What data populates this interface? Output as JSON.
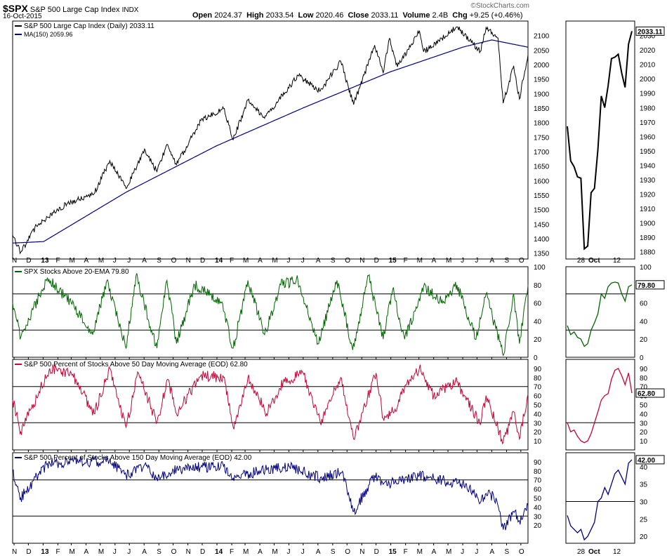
{
  "header": {
    "symbol": "$SPX",
    "name": "S&P 500 Large Cap Index",
    "exchange": "INDX",
    "date": "16-Oct-2015",
    "watermark": "©StockCharts.com",
    "open_label": "Open",
    "open": "2024.37",
    "high_label": "High",
    "high": "2033.54",
    "low_label": "Low",
    "low": "2020.46",
    "close_label": "Close",
    "close": "2033.11",
    "volume_label": "Volume",
    "volume": "2.4B",
    "chg_label": "Chg",
    "chg": "+9.25 (+0.46%)"
  },
  "x_axis": {
    "labels": [
      "N",
      "D",
      "13",
      "F",
      "M",
      "A",
      "M",
      "J",
      "J",
      "A",
      "S",
      "O",
      "N",
      "D",
      "14",
      "F",
      "M",
      "A",
      "M",
      "J",
      "J",
      "A",
      "S",
      "O",
      "N",
      "D",
      "15",
      "F",
      "M",
      "A",
      "M",
      "J",
      "J",
      "A",
      "S",
      "O"
    ],
    "bold": [
      "13",
      "14",
      "15"
    ],
    "side_labels": [
      "28",
      "Oct",
      "12"
    ]
  },
  "colors": {
    "price": "#000000",
    "ma": "#000080",
    "ema20": "#006400",
    "pct50": "#cc0033",
    "pct150": "#000080"
  },
  "chart_data": [
    {
      "type": "line",
      "panel": "price",
      "legend": [
        "S&P 500 Large Cap Index (Daily) 2033.11",
        "MA(150) 2059.96"
      ],
      "ylim": [
        1330,
        2150
      ],
      "yticks": [
        1350,
        1400,
        1450,
        1500,
        1550,
        1600,
        1650,
        1700,
        1750,
        1800,
        1850,
        1900,
        1950,
        2000,
        2050,
        2100
      ],
      "x_range": [
        "2012-10-29",
        "2015-10-16"
      ],
      "series": [
        {
          "name": "S&P 500 Large Cap Index",
          "x": [
            "2012-10-29",
            "2012-11-15",
            "2012-12-18",
            "2013-01-02",
            "2013-02-20",
            "2013-04-18",
            "2013-05-21",
            "2013-06-24",
            "2013-08-02",
            "2013-08-28",
            "2013-09-18",
            "2013-10-08",
            "2013-11-28",
            "2014-01-15",
            "2014-02-04",
            "2014-03-07",
            "2014-04-11",
            "2014-06-20",
            "2014-08-06",
            "2014-09-18",
            "2014-10-15",
            "2014-11-28",
            "2014-12-16",
            "2014-12-29",
            "2015-01-15",
            "2015-03-02",
            "2015-03-11",
            "2015-05-20",
            "2015-07-08",
            "2015-07-20",
            "2015-08-14",
            "2015-08-25",
            "2015-09-16",
            "2015-09-28",
            "2015-10-16"
          ],
          "values": [
            1412,
            1353,
            1445,
            1462,
            1520,
            1555,
            1669,
            1573,
            1709,
            1631,
            1725,
            1655,
            1807,
            1848,
            1741,
            1878,
            1815,
            1962,
            1909,
            2011,
            1862,
            2067,
            1972,
            2090,
            1992,
            2117,
            2044,
            2130,
            2046,
            2128,
            2092,
            1867,
            1996,
            1881,
            2033
          ]
        },
        {
          "name": "MA(150)",
          "x": [
            "2012-10-29",
            "2013-01-02",
            "2013-06-24",
            "2013-12-31",
            "2014-06-30",
            "2014-12-31",
            "2015-06-01",
            "2015-08-01",
            "2015-10-16"
          ],
          "values": [
            1385,
            1390,
            1560,
            1720,
            1850,
            1975,
            2060,
            2085,
            2060
          ]
        }
      ],
      "side": {
        "ylim": [
          1875,
          2040
        ],
        "yticks": [
          1880,
          1890,
          1900,
          1910,
          1920,
          1930,
          1940,
          1950,
          1960,
          1970,
          1980,
          1990,
          2000,
          2010,
          2020,
          2030
        ],
        "x": [
          "2015-09-21",
          "2015-09-22",
          "2015-09-23",
          "2015-09-24",
          "2015-09-25",
          "2015-09-28",
          "2015-09-29",
          "2015-09-30",
          "2015-10-01",
          "2015-10-02",
          "2015-10-05",
          "2015-10-06",
          "2015-10-07",
          "2015-10-08",
          "2015-10-09",
          "2015-10-12",
          "2015-10-13",
          "2015-10-14",
          "2015-10-15",
          "2015-10-16"
        ],
        "values": [
          1967,
          1943,
          1939,
          1932,
          1931,
          1882,
          1884,
          1921,
          1924,
          1951,
          1988,
          1980,
          1995,
          2014,
          2015,
          2017,
          2004,
          1994,
          2024,
          2033
        ],
        "last_label": "2033.11"
      }
    },
    {
      "type": "line",
      "panel": "ema20",
      "legend": [
        "SPX Stocks Above 20-EMA 79.80"
      ],
      "ylim": [
        0,
        100
      ],
      "yticks": [
        0,
        20,
        40,
        60,
        80,
        100
      ],
      "hlines": [
        30,
        70
      ],
      "series": [
        {
          "name": "SPX Stocks Above 20-EMA",
          "x": [
            "2012-10-29",
            "2012-11-15",
            "2013-01-10",
            "2013-03-01",
            "2013-04-15",
            "2013-05-15",
            "2013-06-24",
            "2013-07-15",
            "2013-08-28",
            "2013-09-18",
            "2013-10-08",
            "2013-11-15",
            "2014-01-10",
            "2014-02-04",
            "2014-03-07",
            "2014-04-11",
            "2014-05-15",
            "2014-06-20",
            "2014-08-01",
            "2014-09-10",
            "2014-10-13",
            "2014-11-15",
            "2014-12-16",
            "2015-01-05",
            "2015-01-30",
            "2015-03-11",
            "2015-04-20",
            "2015-05-20",
            "2015-06-29",
            "2015-07-20",
            "2015-08-25",
            "2015-09-16",
            "2015-09-28",
            "2015-10-16"
          ],
          "values": [
            60,
            22,
            88,
            60,
            25,
            85,
            10,
            90,
            10,
            85,
            15,
            80,
            60,
            10,
            85,
            25,
            80,
            85,
            15,
            85,
            8,
            90,
            20,
            75,
            20,
            78,
            60,
            80,
            20,
            70,
            2,
            70,
            15,
            80
          ]
        }
      ],
      "side": {
        "ylim": [
          0,
          100
        ],
        "yticks": [
          0,
          20,
          40,
          60,
          80,
          100
        ],
        "hlines": [
          30,
          70
        ],
        "values": [
          35,
          25,
          28,
          22,
          20,
          12,
          15,
          30,
          38,
          48,
          70,
          65,
          78,
          82,
          83,
          82,
          70,
          62,
          78,
          80
        ],
        "last_label": "79.80"
      }
    },
    {
      "type": "line",
      "panel": "pct50",
      "legend": [
        "S&P 500 Percent of Stocks Above 50 Day Moving Average (EOD) 62.80"
      ],
      "ylim": [
        0,
        100
      ],
      "yticks": [
        10,
        20,
        30,
        40,
        50,
        60,
        70,
        80,
        90
      ],
      "hlines": [
        30,
        70
      ],
      "series": [
        {
          "name": "S&P 500 Percent of Stocks Above 50 Day Moving Average (EOD)",
          "x": [
            "2012-10-29",
            "2012-11-15",
            "2013-01-15",
            "2013-03-01",
            "2013-04-18",
            "2013-05-21",
            "2013-06-24",
            "2013-07-20",
            "2013-08-28",
            "2013-09-20",
            "2013-10-08",
            "2013-11-28",
            "2014-01-15",
            "2014-02-04",
            "2014-03-07",
            "2014-04-15",
            "2014-05-20",
            "2014-07-01",
            "2014-08-06",
            "2014-09-18",
            "2014-10-15",
            "2014-12-01",
            "2014-12-16",
            "2015-01-10",
            "2015-01-30",
            "2015-03-02",
            "2015-04-01",
            "2015-05-20",
            "2015-07-08",
            "2015-07-20",
            "2015-08-25",
            "2015-09-16",
            "2015-09-28",
            "2015-10-16"
          ],
          "values": [
            55,
            20,
            90,
            85,
            40,
            90,
            25,
            85,
            30,
            78,
            40,
            82,
            80,
            25,
            80,
            40,
            75,
            85,
            30,
            80,
            12,
            85,
            35,
            45,
            70,
            90,
            60,
            75,
            28,
            60,
            8,
            42,
            12,
            62
          ]
        }
      ],
      "side": {
        "ylim": [
          0,
          100
        ],
        "yticks": [
          10,
          20,
          30,
          40,
          50,
          60,
          70,
          80,
          90
        ],
        "hlines": [
          30
        ],
        "values": [
          30,
          20,
          22,
          15,
          10,
          8,
          10,
          18,
          30,
          42,
          55,
          60,
          62,
          78,
          88,
          90,
          82,
          72,
          85,
          62.8
        ],
        "last_label": "62.80"
      }
    },
    {
      "type": "line",
      "panel": "pct150",
      "legend": [
        "S&P 500 Percent of Stocks Above 150 Day Moving Average (EOD) 42.00"
      ],
      "ylim": [
        0,
        100
      ],
      "yticks": [
        20,
        30,
        40,
        50,
        60,
        70,
        80,
        90
      ],
      "hlines": [
        30,
        70
      ],
      "series": [
        {
          "name": "S&P 500 Percent of Stocks Above 150 Day Moving Average (EOD)",
          "x": [
            "2012-10-29",
            "2012-11-15",
            "2013-01-10",
            "2013-03-15",
            "2013-05-20",
            "2013-06-24",
            "2013-08-01",
            "2013-08-28",
            "2013-10-08",
            "2013-11-28",
            "2014-01-15",
            "2014-02-04",
            "2014-04-01",
            "2014-06-01",
            "2014-08-06",
            "2014-09-20",
            "2014-10-15",
            "2014-11-28",
            "2014-12-16",
            "2015-01-30",
            "2015-03-02",
            "2015-05-01",
            "2015-06-15",
            "2015-07-08",
            "2015-07-20",
            "2015-08-10",
            "2015-08-25",
            "2015-09-16",
            "2015-09-28",
            "2015-10-16"
          ],
          "values": [
            80,
            50,
            88,
            90,
            90,
            75,
            86,
            72,
            82,
            84,
            85,
            72,
            80,
            85,
            72,
            78,
            35,
            75,
            65,
            70,
            75,
            68,
            62,
            45,
            55,
            50,
            15,
            35,
            25,
            42
          ]
        }
      ],
      "side": {
        "ylim": [
          18,
          44
        ],
        "yticks": [
          20,
          25,
          30,
          35,
          40
        ],
        "hlines": [
          30
        ],
        "values": [
          26,
          23,
          22,
          21,
          22,
          19,
          20,
          22,
          24,
          30,
          31,
          34,
          32,
          35,
          38,
          39,
          37,
          35,
          41,
          42
        ],
        "last_label": "42.00"
      }
    }
  ]
}
